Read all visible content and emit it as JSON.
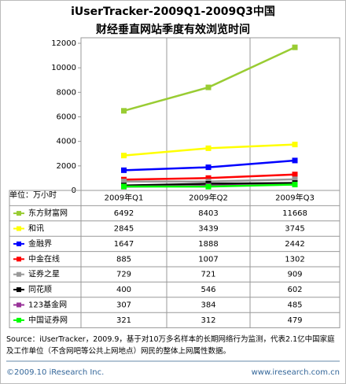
{
  "chart_data": {
    "type": "line",
    "title": "iUserTracker-2009Q1-2009Q3中国",
    "subtitle": "财经垂直网站季度有效浏览时间",
    "unit_label": "单位：万小时",
    "categories": [
      "2009年Q1",
      "2009年Q2",
      "2009年Q3"
    ],
    "ylim": [
      0,
      12000
    ],
    "yticks": [
      0,
      2000,
      4000,
      6000,
      8000,
      10000,
      12000
    ],
    "series": [
      {
        "name": "东方财富网",
        "color": "#99cc33",
        "values": [
          6492,
          8403,
          11668
        ]
      },
      {
        "name": "和讯",
        "color": "#ffff00",
        "values": [
          2845,
          3439,
          3745
        ]
      },
      {
        "name": "金融界",
        "color": "#0000ff",
        "values": [
          1647,
          1888,
          2442
        ]
      },
      {
        "name": "中金在线",
        "color": "#ff0000",
        "values": [
          885,
          1007,
          1302
        ]
      },
      {
        "name": "证券之星",
        "color": "#999999",
        "values": [
          729,
          721,
          909
        ]
      },
      {
        "name": "同花顺",
        "color": "#000000",
        "values": [
          400,
          546,
          602
        ]
      },
      {
        "name": "123基金网",
        "color": "#993399",
        "values": [
          307,
          384,
          485
        ]
      },
      {
        "name": "中国证券网",
        "color": "#00ff00",
        "values": [
          321,
          312,
          479
        ]
      }
    ],
    "source": "Source：iUserTracker，2009.9，基于对10万多名样本的长期网络行为监测，代表2.1亿中国家庭及工作单位（不含网吧等公共上网地点）网民的整体上网属性数据。",
    "footer_left": "©2009.10 iResearch Inc.",
    "footer_right": "www.iresearch.com.cn"
  }
}
